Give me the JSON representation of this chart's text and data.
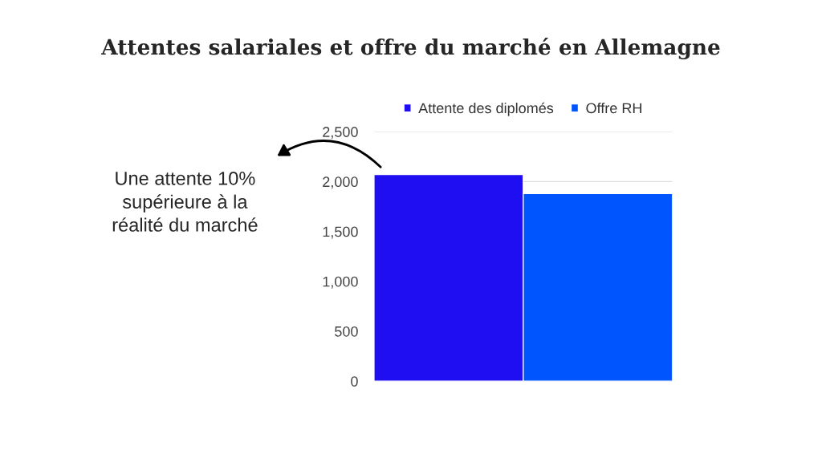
{
  "chart_data": {
    "type": "bar",
    "title": "Attentes salariales et offre du marché en Allemagne",
    "categories": [
      null
    ],
    "series": [
      {
        "name": "Attente des diplomés",
        "color": "#1f0ef2",
        "values": [
          2070
        ]
      },
      {
        "name": "Offre RH",
        "color": "#0055ff",
        "values": [
          1880
        ]
      }
    ],
    "ylim": [
      0,
      2500
    ],
    "yticks": [
      {
        "value": 0,
        "label": "0"
      },
      {
        "value": 500,
        "label": "500"
      },
      {
        "value": 1000,
        "label": "1,000"
      },
      {
        "value": 1500,
        "label": "1,500"
      },
      {
        "value": 2000,
        "label": "2,000"
      },
      {
        "value": 2500,
        "label": "2,500"
      }
    ],
    "grid": "y",
    "legend": "top",
    "annotations": [
      "Une attente 10% supérieure à la réalité du marché"
    ]
  }
}
